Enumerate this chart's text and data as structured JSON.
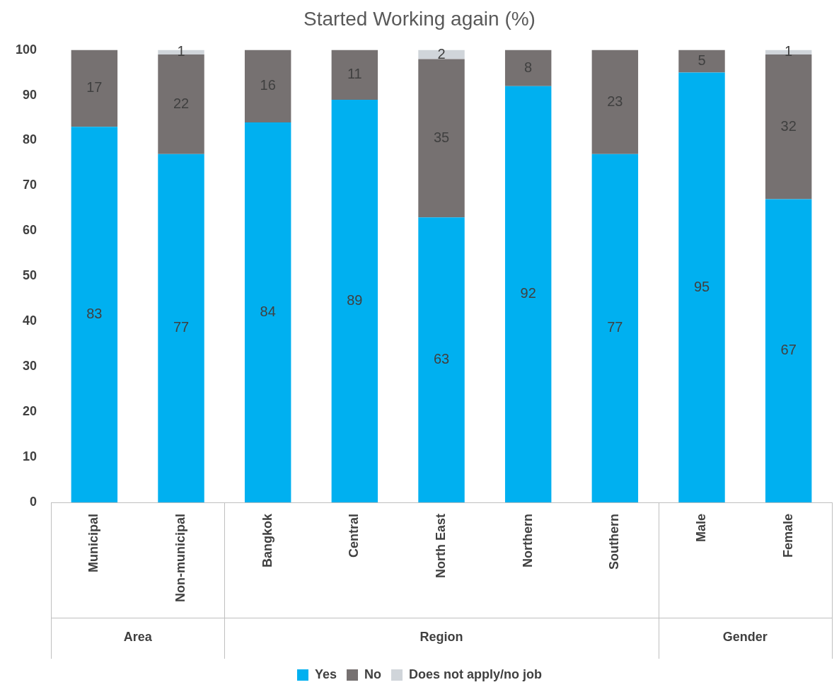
{
  "chart_data": {
    "type": "bar",
    "title": "Started Working again (%)",
    "stacked": true,
    "data_labels": true,
    "grid": false,
    "legend": "bottom",
    "categories": [
      "Municipal",
      "Non-municipal",
      "Bangkok",
      "Central",
      "North East",
      "Northern",
      "Southern",
      "Male",
      "Female"
    ],
    "series": [
      {
        "name": "Yes",
        "color": "#00b0f0",
        "values": [
          83,
          77,
          84,
          89,
          63,
          92,
          77,
          95,
          67
        ]
      },
      {
        "name": "No",
        "color": "#767171",
        "values": [
          17,
          22,
          16,
          11,
          35,
          8,
          23,
          5,
          32
        ]
      },
      {
        "name": "Does not apply/no job",
        "color": "#d0d5da",
        "values": [
          null,
          1,
          null,
          null,
          2,
          null,
          null,
          null,
          1
        ]
      }
    ],
    "ylim": [
      0,
      100
    ],
    "yticks": [
      0,
      10,
      20,
      30,
      40,
      50,
      60,
      70,
      80,
      90,
      100
    ],
    "annotations": [
      "Area",
      "Region",
      "Gender"
    ]
  }
}
